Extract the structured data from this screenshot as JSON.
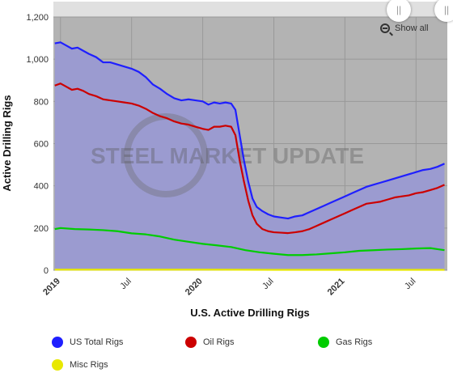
{
  "chart_data": {
    "type": "area",
    "xlabel": "U.S. Active Drilling Rigs",
    "ylabel": "Active Drilling Rigs",
    "ylim": [
      0,
      1200
    ],
    "yticks": [
      0,
      200,
      400,
      600,
      800,
      1000,
      1200
    ],
    "yticklabels": [
      "0",
      "200",
      "400",
      "600",
      "800",
      "1,000",
      "1,200"
    ],
    "xlim": [
      2018.95,
      2021.72
    ],
    "xticks": [
      {
        "x": 2019.0,
        "label": "2019",
        "bold": true
      },
      {
        "x": 2019.5,
        "label": "Jul",
        "bold": false
      },
      {
        "x": 2020.0,
        "label": "2020",
        "bold": true
      },
      {
        "x": 2020.5,
        "label": "Jul",
        "bold": false
      },
      {
        "x": 2021.0,
        "label": "2021",
        "bold": true
      },
      {
        "x": 2021.5,
        "label": "Jul",
        "bold": false
      }
    ],
    "grid": true,
    "legend_position": "bottom",
    "series": [
      {
        "name": "US Total Rigs",
        "color": "#1f1fff",
        "fill": "#9b9bd0",
        "x": [
          2018.96,
          2019.0,
          2019.04,
          2019.08,
          2019.12,
          2019.16,
          2019.2,
          2019.25,
          2019.3,
          2019.35,
          2019.4,
          2019.45,
          2019.5,
          2019.55,
          2019.6,
          2019.65,
          2019.7,
          2019.75,
          2019.8,
          2019.85,
          2019.9,
          2019.95,
          2020.0,
          2020.04,
          2020.08,
          2020.12,
          2020.16,
          2020.2,
          2020.23,
          2020.26,
          2020.29,
          2020.32,
          2020.35,
          2020.38,
          2020.42,
          2020.46,
          2020.5,
          2020.55,
          2020.6,
          2020.65,
          2020.7,
          2020.75,
          2020.8,
          2020.85,
          2020.9,
          2020.95,
          2021.0,
          2021.05,
          2021.1,
          2021.15,
          2021.2,
          2021.25,
          2021.3,
          2021.35,
          2021.4,
          2021.45,
          2021.5,
          2021.55,
          2021.6,
          2021.65,
          2021.7
        ],
        "y": [
          1075,
          1080,
          1065,
          1050,
          1055,
          1040,
          1025,
          1010,
          985,
          985,
          975,
          965,
          955,
          940,
          915,
          880,
          860,
          835,
          815,
          805,
          810,
          805,
          800,
          785,
          795,
          790,
          795,
          790,
          760,
          640,
          520,
          420,
          340,
          300,
          280,
          265,
          255,
          250,
          245,
          255,
          260,
          275,
          290,
          305,
          320,
          335,
          350,
          365,
          380,
          395,
          405,
          415,
          425,
          435,
          445,
          455,
          465,
          475,
          480,
          490,
          505
        ]
      },
      {
        "name": "Oil Rigs",
        "color": "#cc0000",
        "fill": "#9b9bd0",
        "x": [
          2018.96,
          2019.0,
          2019.04,
          2019.08,
          2019.12,
          2019.16,
          2019.2,
          2019.25,
          2019.3,
          2019.35,
          2019.4,
          2019.45,
          2019.5,
          2019.55,
          2019.6,
          2019.65,
          2019.7,
          2019.75,
          2019.8,
          2019.85,
          2019.9,
          2019.95,
          2020.0,
          2020.04,
          2020.08,
          2020.12,
          2020.16,
          2020.2,
          2020.23,
          2020.26,
          2020.29,
          2020.32,
          2020.35,
          2020.38,
          2020.42,
          2020.46,
          2020.5,
          2020.55,
          2020.6,
          2020.65,
          2020.7,
          2020.75,
          2020.8,
          2020.85,
          2020.9,
          2020.95,
          2021.0,
          2021.05,
          2021.1,
          2021.15,
          2021.2,
          2021.25,
          2021.3,
          2021.35,
          2021.4,
          2021.45,
          2021.5,
          2021.55,
          2021.6,
          2021.65,
          2021.7
        ],
        "y": [
          875,
          885,
          870,
          855,
          860,
          850,
          835,
          825,
          810,
          805,
          800,
          795,
          790,
          780,
          765,
          745,
          730,
          720,
          705,
          695,
          690,
          680,
          670,
          665,
          680,
          680,
          685,
          680,
          640,
          520,
          420,
          330,
          260,
          220,
          195,
          185,
          180,
          178,
          176,
          180,
          185,
          195,
          210,
          225,
          240,
          255,
          270,
          285,
          300,
          315,
          320,
          325,
          335,
          345,
          350,
          355,
          365,
          370,
          380,
          390,
          405
        ]
      },
      {
        "name": "Gas Rigs",
        "color": "#00cc00",
        "fill": "#9b9bd0",
        "x": [
          2018.96,
          2019.0,
          2019.1,
          2019.2,
          2019.3,
          2019.4,
          2019.5,
          2019.6,
          2019.7,
          2019.8,
          2019.9,
          2020.0,
          2020.1,
          2020.2,
          2020.3,
          2020.4,
          2020.5,
          2020.6,
          2020.7,
          2020.8,
          2020.9,
          2021.0,
          2021.1,
          2021.2,
          2021.3,
          2021.4,
          2021.5,
          2021.6,
          2021.65,
          2021.7
        ],
        "y": [
          195,
          200,
          195,
          193,
          190,
          185,
          175,
          170,
          160,
          145,
          135,
          125,
          118,
          110,
          95,
          85,
          78,
          72,
          72,
          75,
          80,
          85,
          92,
          95,
          98,
          100,
          103,
          105,
          100,
          95
        ]
      },
      {
        "name": "Misc Rigs",
        "color": "#e8e800",
        "fill": "#9b9bd0",
        "x": [
          2018.96,
          2019.5,
          2020.0,
          2020.5,
          2021.0,
          2021.5,
          2021.7
        ],
        "y": [
          3,
          3,
          3,
          2,
          2,
          2,
          2
        ]
      }
    ]
  },
  "watermark": "STEEL MARKET UPDATE",
  "toolbar": {
    "show_all_label": "Show all"
  },
  "navigator": {
    "left_handle": "||",
    "right_handle": "||"
  }
}
